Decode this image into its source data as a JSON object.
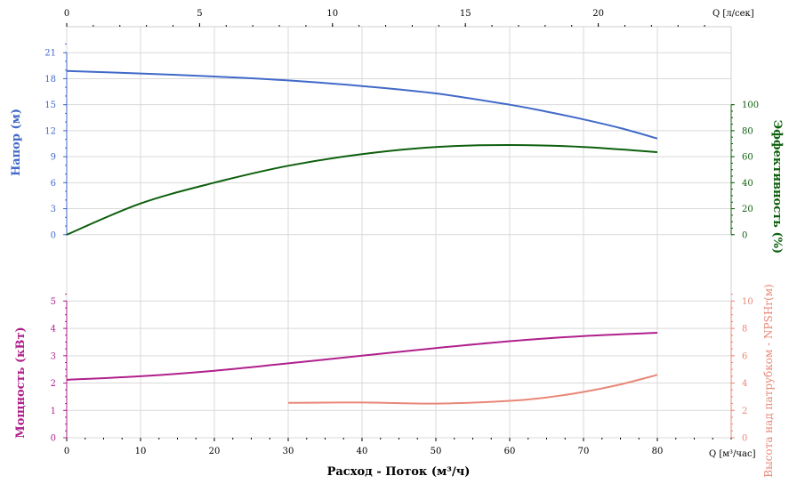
{
  "chart_data": [
    {
      "type": "line",
      "panel": "upper",
      "x_top": {
        "label": "Q [л/сек]",
        "ticks": [
          0,
          5,
          10,
          15,
          20
        ],
        "range": [
          0,
          25
        ]
      },
      "x_bottom": {
        "label": "Q [м³/час]",
        "ticks": [
          0,
          10,
          20,
          30,
          40,
          50,
          60,
          70,
          80
        ],
        "range": [
          0,
          90
        ]
      },
      "y_left": {
        "label": "Напор (м)",
        "ticks": [
          0,
          3,
          6,
          9,
          12,
          15,
          18,
          21
        ],
        "range": [
          -3,
          24
        ],
        "color": "#4169c8"
      },
      "y_right": {
        "label": "Эффективность (%)",
        "ticks": [
          0,
          20,
          40,
          60,
          80,
          100
        ],
        "range": [
          -20,
          160
        ],
        "color": "#0d5f0d"
      },
      "grid": true,
      "series": [
        {
          "axis": "left",
          "color": "#4169c8",
          "x": [
            0,
            10,
            20,
            30,
            40,
            50,
            60,
            65,
            70,
            75,
            80
          ],
          "y": [
            18.9,
            18.6,
            18.25,
            17.8,
            17.15,
            16.3,
            15.0,
            14.2,
            13.3,
            12.3,
            11.1
          ]
        },
        {
          "axis": "right",
          "color": "#0d5f0d",
          "x": [
            0,
            10,
            20,
            30,
            40,
            50,
            60,
            70,
            80
          ],
          "y": [
            0,
            24,
            40,
            53,
            62,
            67.5,
            69,
            67.5,
            63.5
          ]
        }
      ]
    },
    {
      "type": "line",
      "panel": "lower",
      "x": {
        "label": "Q [м³/час]",
        "ticks": [
          0,
          10,
          20,
          30,
          40,
          50,
          60,
          70,
          80
        ],
        "range": [
          0,
          90
        ]
      },
      "xlabel": "Расход - Поток (м³/ч)",
      "y_left": {
        "label": "Мощность (кВт)",
        "ticks": [
          0,
          1,
          2,
          3,
          4,
          5
        ],
        "range": [
          0,
          5.5
        ],
        "color": "#b0208c"
      },
      "y_right": {
        "label": "Высота над патрубком - NPSHr(м)",
        "ticks": [
          0,
          2,
          4,
          6,
          8,
          10
        ],
        "range": [
          0,
          11
        ],
        "color": "#e88878"
      },
      "grid": true,
      "series": [
        {
          "axis": "left",
          "color": "#b0208c",
          "x": [
            0,
            10,
            20,
            30,
            40,
            50,
            60,
            70,
            80
          ],
          "y": [
            2.12,
            2.25,
            2.45,
            2.72,
            3.0,
            3.28,
            3.53,
            3.72,
            3.84
          ]
        },
        {
          "axis": "right",
          "color": "#e88878",
          "x": [
            30,
            40,
            50,
            60,
            65,
            70,
            75,
            80
          ],
          "y": [
            2.55,
            2.58,
            2.5,
            2.7,
            2.95,
            3.35,
            3.9,
            4.6
          ]
        }
      ]
    }
  ]
}
